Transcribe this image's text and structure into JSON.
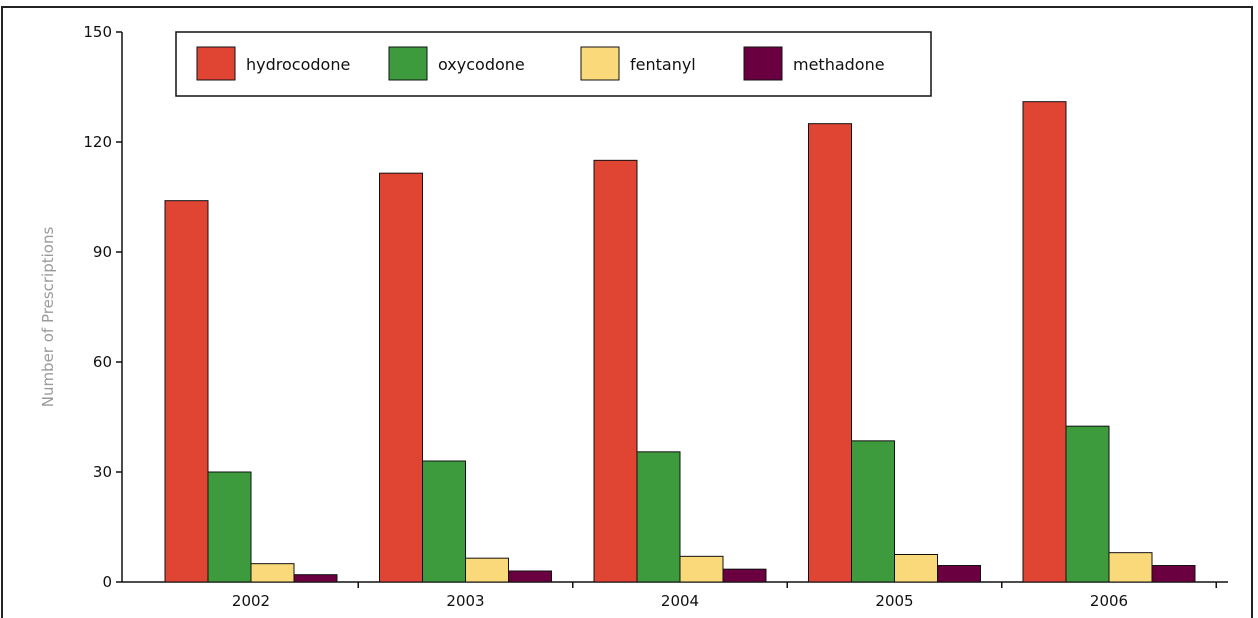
{
  "chart_data": {
    "type": "bar",
    "title": "",
    "xlabel": "",
    "ylabel": "Number of Prescriptions",
    "ylim": [
      0,
      150
    ],
    "yticks": [
      0,
      30,
      60,
      90,
      120,
      150
    ],
    "categories": [
      "2002",
      "2003",
      "2004",
      "2005",
      "2006"
    ],
    "legend_position": "top-left",
    "grid": false,
    "series": [
      {
        "name": "hydrocodone",
        "color": "#e04433",
        "values": [
          104,
          111.5,
          115,
          125,
          131
        ]
      },
      {
        "name": "oxycodone",
        "color": "#3d9a3d",
        "values": [
          30,
          33,
          35.5,
          38.5,
          42.5
        ]
      },
      {
        "name": "fentanyl",
        "color": "#fad97a",
        "values": [
          5,
          6.5,
          7,
          7.5,
          8
        ]
      },
      {
        "name": "methadone",
        "color": "#6b0040",
        "values": [
          2,
          3,
          3.5,
          4.5,
          4.5
        ]
      }
    ]
  }
}
